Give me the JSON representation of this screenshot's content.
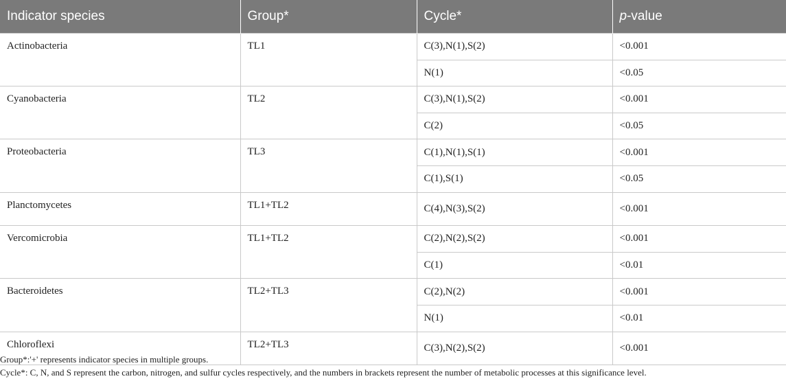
{
  "table": {
    "headers": {
      "species": "Indicator species",
      "group": "Group*",
      "cycle": "Cycle*",
      "p_prefix": "p",
      "p_suffix": "-value"
    },
    "rows": [
      {
        "species": "Actinobacteria",
        "group": "TL1",
        "entries": [
          {
            "cycle": "C(3),N(1),S(2)",
            "p": "<0.001"
          },
          {
            "cycle": "N(1)",
            "p": "<0.05"
          }
        ]
      },
      {
        "species": "Cyanobacteria",
        "group": "TL2",
        "entries": [
          {
            "cycle": "C(3),N(1),S(2)",
            "p": "<0.001"
          },
          {
            "cycle": "C(2)",
            "p": "<0.05"
          }
        ]
      },
      {
        "species": "Proteobacteria",
        "group": "TL3",
        "entries": [
          {
            "cycle": "C(1),N(1),S(1)",
            "p": "<0.001"
          },
          {
            "cycle": "C(1),S(1)",
            "p": "<0.05"
          }
        ]
      },
      {
        "species": "Planctomycetes",
        "group": "TL1+TL2",
        "entries": [
          {
            "cycle": "C(4),N(3),S(2)",
            "p": "<0.001"
          }
        ]
      },
      {
        "species": "Vercomicrobia",
        "group": "TL1+TL2",
        "entries": [
          {
            "cycle": "C(2),N(2),S(2)",
            "p": "<0.001"
          },
          {
            "cycle": "C(1)",
            "p": "<0.01"
          }
        ]
      },
      {
        "species": "Bacteroidetes",
        "group": "TL2+TL3",
        "entries": [
          {
            "cycle": "C(2),N(2)",
            "p": "<0.001"
          },
          {
            "cycle": "N(1)",
            "p": "<0.01"
          }
        ]
      },
      {
        "species": "Chloroflexi",
        "group": "TL2+TL3",
        "entries": [
          {
            "cycle": "C(3),N(2),S(2)",
            "p": "<0.001"
          }
        ]
      }
    ]
  },
  "notes": [
    "Group*:'+' represents indicator species in multiple groups.",
    "Cycle*: C, N, and S represent the carbon, nitrogen, and sulfur cycles respectively, and the numbers in brackets represent the number of metabolic processes at this significance level."
  ]
}
